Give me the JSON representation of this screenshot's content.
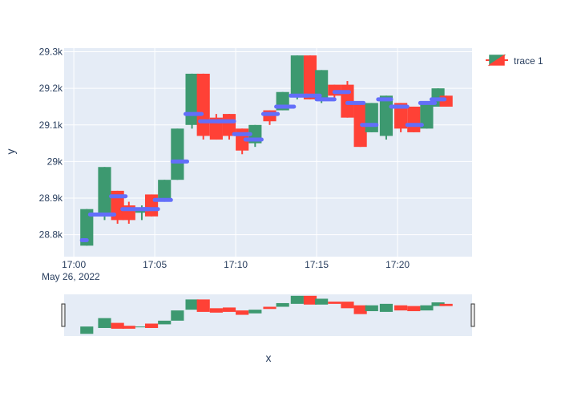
{
  "chart_data": {
    "type": "candlestick",
    "title": "",
    "xlabel": "x",
    "ylabel": "y",
    "x_tick_labels": [
      "17:00",
      "17:05",
      "17:10",
      "17:15",
      "17:20"
    ],
    "x_tick_minutes": [
      0,
      5,
      10,
      15,
      20
    ],
    "x_date_label": "May 26, 2022",
    "xlim_minutes": [
      -0.6,
      24.6
    ],
    "y_tick_labels": [
      "28.8k",
      "28.9k",
      "29k",
      "29.1k",
      "29.2k",
      "29.3k"
    ],
    "y_tick_values": [
      28800,
      28900,
      29000,
      29100,
      29200,
      29300
    ],
    "ylim": [
      28740,
      29310
    ],
    "increasing_color": "#3d9970",
    "decreasing_color": "#ff4136",
    "mean_marker_color": "#636efa",
    "legend": {
      "entries": [
        "trace 1"
      ],
      "placement": "top-right"
    },
    "rangeslider": true,
    "grid": true,
    "series": [
      {
        "name": "trace 1",
        "candles": [
          {
            "t": 0.8,
            "o": 28770,
            "c": 28870,
            "h": 28870,
            "l": 28770
          },
          {
            "t": 1.9,
            "o": 28850,
            "c": 28985,
            "h": 28985,
            "l": 28840
          },
          {
            "t": 2.7,
            "o": 28920,
            "c": 28840,
            "h": 28920,
            "l": 28830
          },
          {
            "t": 3.4,
            "o": 28880,
            "c": 28840,
            "h": 28890,
            "l": 28830
          },
          {
            "t": 4.2,
            "o": 28860,
            "c": 28870,
            "h": 28880,
            "l": 28840
          },
          {
            "t": 4.8,
            "o": 28910,
            "c": 28850,
            "h": 28910,
            "l": 28850
          },
          {
            "t": 5.6,
            "o": 28900,
            "c": 28950,
            "h": 28950,
            "l": 28890
          },
          {
            "t": 6.4,
            "o": 28950,
            "c": 29090,
            "h": 29090,
            "l": 28950
          },
          {
            "t": 7.3,
            "o": 29100,
            "c": 29240,
            "h": 29240,
            "l": 29090
          },
          {
            "t": 8.0,
            "o": 29240,
            "c": 29070,
            "h": 29240,
            "l": 29060
          },
          {
            "t": 8.8,
            "o": 29120,
            "c": 29060,
            "h": 29130,
            "l": 29060
          },
          {
            "t": 9.6,
            "o": 29130,
            "c": 29070,
            "h": 29130,
            "l": 29060
          },
          {
            "t": 10.4,
            "o": 29090,
            "c": 29030,
            "h": 29090,
            "l": 29020
          },
          {
            "t": 11.2,
            "o": 29050,
            "c": 29100,
            "h": 29100,
            "l": 29040
          },
          {
            "t": 12.1,
            "o": 29140,
            "c": 29110,
            "h": 29140,
            "l": 29100
          },
          {
            "t": 12.9,
            "o": 29140,
            "c": 29190,
            "h": 29190,
            "l": 29140
          },
          {
            "t": 13.8,
            "o": 29180,
            "c": 29290,
            "h": 29290,
            "l": 29170
          },
          {
            "t": 14.6,
            "o": 29290,
            "c": 29170,
            "h": 29290,
            "l": 29170
          },
          {
            "t": 15.3,
            "o": 29170,
            "c": 29250,
            "h": 29250,
            "l": 29160
          },
          {
            "t": 16.1,
            "o": 29210,
            "c": 29180,
            "h": 29210,
            "l": 29170
          },
          {
            "t": 16.9,
            "o": 29210,
            "c": 29120,
            "h": 29220,
            "l": 29120
          },
          {
            "t": 17.7,
            "o": 29160,
            "c": 29040,
            "h": 29160,
            "l": 29040
          },
          {
            "t": 18.4,
            "o": 29080,
            "c": 29160,
            "h": 29160,
            "l": 29080
          },
          {
            "t": 19.3,
            "o": 29070,
            "c": 29180,
            "h": 29180,
            "l": 29060
          },
          {
            "t": 20.2,
            "o": 29160,
            "c": 29090,
            "h": 29160,
            "l": 29080
          },
          {
            "t": 21.0,
            "o": 29150,
            "c": 29080,
            "h": 29150,
            "l": 29080
          },
          {
            "t": 21.8,
            "o": 29090,
            "c": 29160,
            "h": 29160,
            "l": 29090
          },
          {
            "t": 22.5,
            "o": 29150,
            "c": 29200,
            "h": 29200,
            "l": 29150
          },
          {
            "t": 23.0,
            "o": 29180,
            "c": 29150,
            "h": 29180,
            "l": 29150
          }
        ]
      }
    ],
    "mean_markers": [
      {
        "t0": 0.5,
        "t1": 0.8,
        "y": 28785
      },
      {
        "t0": 1.0,
        "t1": 2.5,
        "y": 28855
      },
      {
        "t0": 2.3,
        "t1": 3.2,
        "y": 28905
      },
      {
        "t0": 3.0,
        "t1": 4.6,
        "y": 28870
      },
      {
        "t0": 4.3,
        "t1": 5.2,
        "y": 28870
      },
      {
        "t0": 5.0,
        "t1": 6.0,
        "y": 28895
      },
      {
        "t0": 6.1,
        "t1": 7.0,
        "y": 29000
      },
      {
        "t0": 6.9,
        "t1": 7.9,
        "y": 29130
      },
      {
        "t0": 7.8,
        "t1": 9.0,
        "y": 29110
      },
      {
        "t0": 8.9,
        "t1": 9.9,
        "y": 29110
      },
      {
        "t0": 9.9,
        "t1": 10.9,
        "y": 29075
      },
      {
        "t0": 10.6,
        "t1": 11.6,
        "y": 29060
      },
      {
        "t0": 11.7,
        "t1": 12.6,
        "y": 29130
      },
      {
        "t0": 12.5,
        "t1": 13.6,
        "y": 29150
      },
      {
        "t0": 13.4,
        "t1": 14.4,
        "y": 29180
      },
      {
        "t0": 14.3,
        "t1": 15.2,
        "y": 29180
      },
      {
        "t0": 15.0,
        "t1": 16.1,
        "y": 29170
      },
      {
        "t0": 16.1,
        "t1": 17.0,
        "y": 29190
      },
      {
        "t0": 16.9,
        "t1": 17.9,
        "y": 29160
      },
      {
        "t0": 17.8,
        "t1": 18.7,
        "y": 29100
      },
      {
        "t0": 18.8,
        "t1": 19.6,
        "y": 29170
      },
      {
        "t0": 19.6,
        "t1": 20.6,
        "y": 29150
      },
      {
        "t0": 20.6,
        "t1": 21.5,
        "y": 29100
      },
      {
        "t0": 21.4,
        "t1": 22.3,
        "y": 29160
      },
      {
        "t0": 22.1,
        "t1": 22.9,
        "y": 29170
      }
    ]
  }
}
